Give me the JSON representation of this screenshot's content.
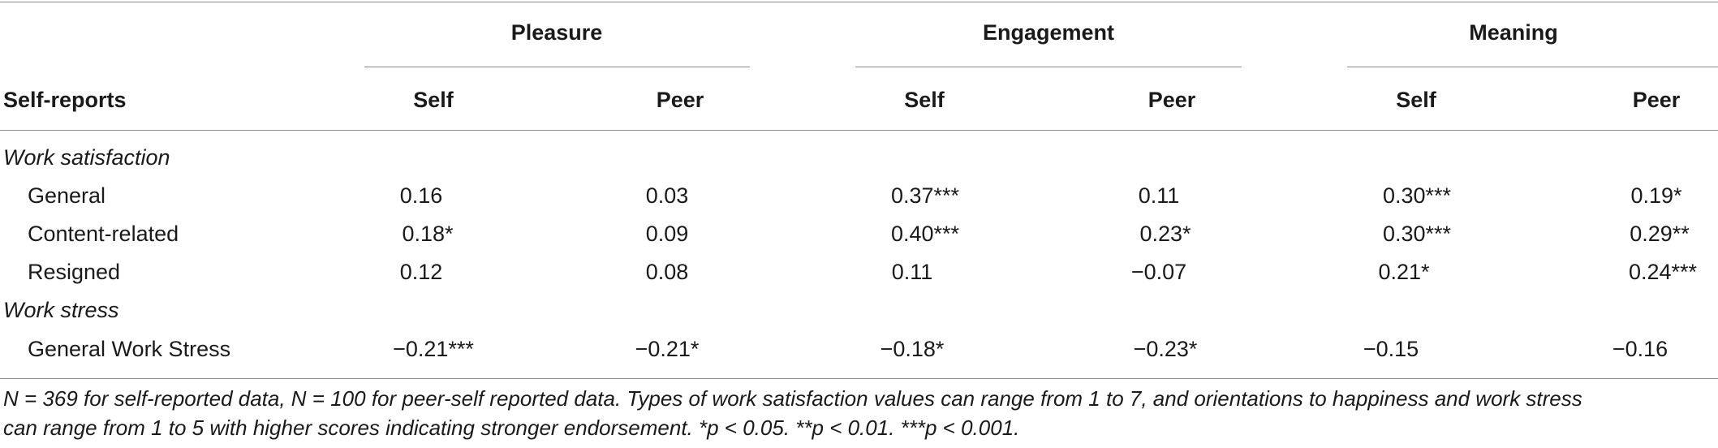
{
  "groups": [
    "Pleasure",
    "Engagement",
    "Meaning"
  ],
  "subheaders": [
    "Self",
    "Peer",
    "Self",
    "Peer",
    "Self",
    "Peer"
  ],
  "row_header": "Self-reports",
  "sections": [
    {
      "label": "Work satisfaction",
      "rows": [
        {
          "label": "General",
          "values": [
            "0.16",
            "0.03",
            "0.37***",
            "0.11",
            "0.30***",
            "0.19*"
          ]
        },
        {
          "label": "Content-related",
          "values": [
            "0.18*",
            "0.09",
            "0.40***",
            "0.23*",
            "0.30***",
            "0.29**"
          ]
        },
        {
          "label": "Resigned",
          "values": [
            "0.12",
            "0.08",
            "0.11",
            "−0.07",
            "0.21*",
            "0.24***"
          ]
        }
      ]
    },
    {
      "label": "Work stress",
      "rows": [
        {
          "label": "General Work Stress",
          "values": [
            "−0.21***",
            "−0.21*",
            "−0.18*",
            "−0.23*",
            "−0.15",
            "−0.16"
          ]
        }
      ]
    }
  ],
  "footnote": {
    "line1": "N = 369 for self-reported data, N = 100 for peer-self reported data. Types of work satisfaction values can range from 1 to 7, and orientations to happiness and work stress",
    "line2": "can range from 1 to 5 with higher scores indicating stronger endorsement. *p < 0.05. **p < 0.01. ***p < 0.001."
  }
}
